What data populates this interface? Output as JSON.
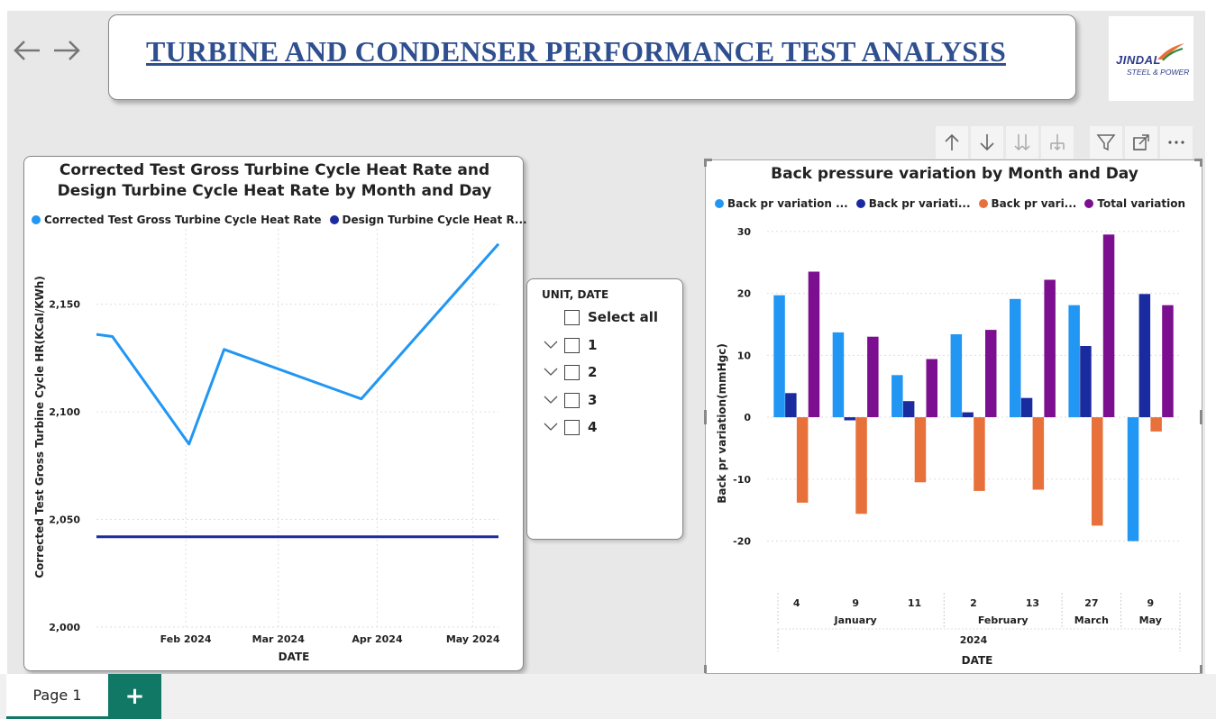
{
  "header": {
    "title": "TURBINE AND CONDENSER  PERFORMANCE TEST ANALYSIS",
    "logo_line1": "JINDAL",
    "logo_line2": "STEEL & POWER"
  },
  "nav": {
    "back_icon": "arrow-left-icon",
    "forward_icon": "arrow-right-icon"
  },
  "toolbar": {
    "icons": [
      "arrow-up-icon",
      "arrow-down-icon",
      "double-arrow-down-icon",
      "expand-hierarchy-icon",
      "filter-icon",
      "focus-mode-icon",
      "more-options-icon"
    ]
  },
  "slicer": {
    "header": "UNIT, DATE",
    "select_all": "Select all",
    "items": [
      "1",
      "2",
      "3",
      "4"
    ]
  },
  "tabs": {
    "page1": "Page 1",
    "add": "+"
  },
  "colors": {
    "accent": "#117865",
    "light_blue": "#2196f3",
    "dark_blue": "#1a2ba0",
    "orange": "#e8703a",
    "purple": "#7b0f8f"
  },
  "chart_data": [
    {
      "type": "line",
      "title": "Corrected Test Gross Turbine Cycle Heat Rate and Design Turbine Cycle Heat Rate by Month and Day",
      "xlabel": "DATE",
      "ylabel": "Corrected Test Gross Turbine Cycle HR(KCal/KWh)",
      "x_ticks": [
        "Feb 2024",
        "Mar 2024",
        "Apr 2024",
        "May 2024"
      ],
      "y_ticks": [
        "2,000",
        "2,050",
        "2,100",
        "2,150"
      ],
      "ylim": [
        2000,
        2185
      ],
      "legend_position": "top-left",
      "grid": true,
      "series": [
        {
          "name": "Corrected Test Gross Turbine Cycle Heat Rate",
          "color": "#2196f3",
          "x": [
            "2024-01-04",
            "2024-01-09",
            "2024-02-02",
            "2024-02-13",
            "2024-03-27",
            "2024-05-09"
          ],
          "values": [
            2136,
            2135,
            2085,
            2129,
            2106,
            2178
          ]
        },
        {
          "name": "Design Turbine Cycle Heat R...",
          "color": "#1a2ba0",
          "x": [
            "2024-01-04",
            "2024-05-09"
          ],
          "values": [
            2042,
            2042
          ]
        }
      ]
    },
    {
      "type": "bar",
      "title": "Back pressure variation by Month and Day",
      "xlabel": "DATE",
      "ylabel": "Back pr variation(mmHgc)",
      "categories": [
        "4",
        "9",
        "11",
        "2",
        "13",
        "27",
        "9"
      ],
      "month_groups": [
        {
          "label": "January",
          "span": 3
        },
        {
          "label": "February",
          "span": 2
        },
        {
          "label": "March",
          "span": 1
        },
        {
          "label": "May",
          "span": 1
        }
      ],
      "year_label": "2024",
      "y_ticks": [
        "-20",
        "-10",
        "0",
        "10",
        "20",
        "30"
      ],
      "ylim": [
        -24,
        31
      ],
      "legend_position": "top-left",
      "grid": true,
      "series": [
        {
          "name": "Back pr variation ...",
          "color": "#2196f3",
          "values": [
            19.7,
            13.7,
            6.8,
            13.4,
            19.1,
            18.1,
            -20.0
          ]
        },
        {
          "name": "Back pr variati...",
          "color": "#1a2ba0",
          "values": [
            3.9,
            -0.5,
            2.6,
            0.8,
            3.1,
            11.5,
            19.9
          ]
        },
        {
          "name": "Back pr vari...",
          "color": "#e8703a",
          "values": [
            -13.8,
            -15.6,
            -10.5,
            -11.9,
            -11.7,
            -17.5,
            -2.3
          ]
        },
        {
          "name": "Total variation",
          "color": "#7b0f8f",
          "values": [
            23.5,
            13.0,
            9.4,
            14.1,
            22.2,
            29.5,
            18.1
          ]
        }
      ]
    }
  ]
}
